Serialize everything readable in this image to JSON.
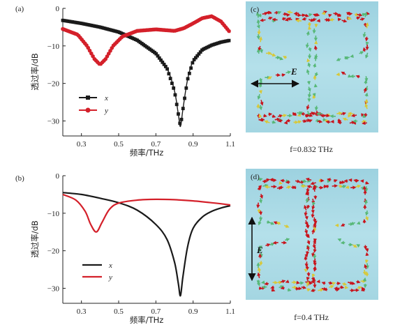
{
  "panel_labels": {
    "a": "(a)",
    "b": "(b)",
    "c": "(c)",
    "d": "(d)"
  },
  "captions": {
    "c": "f=0.832 THz",
    "d": "f=0.4 THz"
  },
  "field_label": "E",
  "colors": {
    "x_series": "#1a1a1a",
    "y_series": "#d4202a",
    "field_bg": "#a9d8e4",
    "arrow_red": "#c8141c",
    "arrow_yellow": "#d8c838",
    "arrow_green": "#58b878"
  },
  "chart_data": [
    {
      "type": "line",
      "panel": "a",
      "xlabel": "频率/THz",
      "ylabel": "透过率/dB",
      "xlim": [
        0.2,
        1.1
      ],
      "ylim": [
        -34,
        0
      ],
      "xticks": [
        "0.3",
        "0.5",
        "0.7",
        "0.9",
        "1.1"
      ],
      "yticks": [
        "0",
        "−10",
        "−20",
        "−30"
      ],
      "markers": true,
      "legend_position": "lower-left",
      "series": [
        {
          "name": "x",
          "x": [
            0.2,
            0.3,
            0.4,
            0.5,
            0.6,
            0.7,
            0.76,
            0.8,
            0.82,
            0.832,
            0.845,
            0.87,
            0.9,
            0.95,
            1.0,
            1.05,
            1.1
          ],
          "y": [
            -3.2,
            -4.0,
            -5.0,
            -6.3,
            -8.5,
            -12.0,
            -16.0,
            -22.0,
            -28.0,
            -31.5,
            -27.0,
            -19.0,
            -14.0,
            -11.0,
            -9.8,
            -9.0,
            -8.5
          ]
        },
        {
          "name": "y",
          "x": [
            0.2,
            0.28,
            0.33,
            0.37,
            0.4,
            0.43,
            0.47,
            0.52,
            0.6,
            0.7,
            0.8,
            0.85,
            0.9,
            0.95,
            1.0,
            1.05,
            1.1
          ],
          "y": [
            -5.5,
            -7.0,
            -10.0,
            -13.5,
            -15.0,
            -13.5,
            -10.0,
            -7.5,
            -6.0,
            -5.6,
            -6.0,
            -5.3,
            -4.0,
            -2.6,
            -2.1,
            -3.5,
            -6.5
          ]
        }
      ]
    },
    {
      "type": "line",
      "panel": "b",
      "xlabel": "频率/THz",
      "ylabel": "透过率/dB",
      "xlim": [
        0.2,
        1.1
      ],
      "ylim": [
        -34,
        0
      ],
      "xticks": [
        "0.3",
        "0.5",
        "0.7",
        "0.9",
        "1.1"
      ],
      "yticks": [
        "0",
        "−10",
        "−20",
        "−30"
      ],
      "markers": false,
      "legend_position": "lower-left",
      "series": [
        {
          "name": "x",
          "x": [
            0.2,
            0.3,
            0.4,
            0.5,
            0.6,
            0.7,
            0.76,
            0.8,
            0.82,
            0.832,
            0.845,
            0.87,
            0.9,
            0.95,
            1.0,
            1.05,
            1.1
          ],
          "y": [
            -4.5,
            -5.0,
            -6.0,
            -7.2,
            -9.2,
            -13.0,
            -17.0,
            -23.0,
            -28.5,
            -32.0,
            -27.0,
            -19.0,
            -14.0,
            -11.0,
            -9.5,
            -8.6,
            -8.0
          ]
        },
        {
          "name": "y",
          "x": [
            0.2,
            0.27,
            0.32,
            0.35,
            0.38,
            0.41,
            0.45,
            0.5,
            0.6,
            0.7,
            0.8,
            0.9,
            1.0,
            1.1
          ],
          "y": [
            -5.0,
            -6.5,
            -9.5,
            -13.0,
            -15.0,
            -12.5,
            -9.0,
            -7.3,
            -6.5,
            -6.3,
            -6.4,
            -6.7,
            -7.2,
            -7.8
          ]
        }
      ]
    }
  ]
}
